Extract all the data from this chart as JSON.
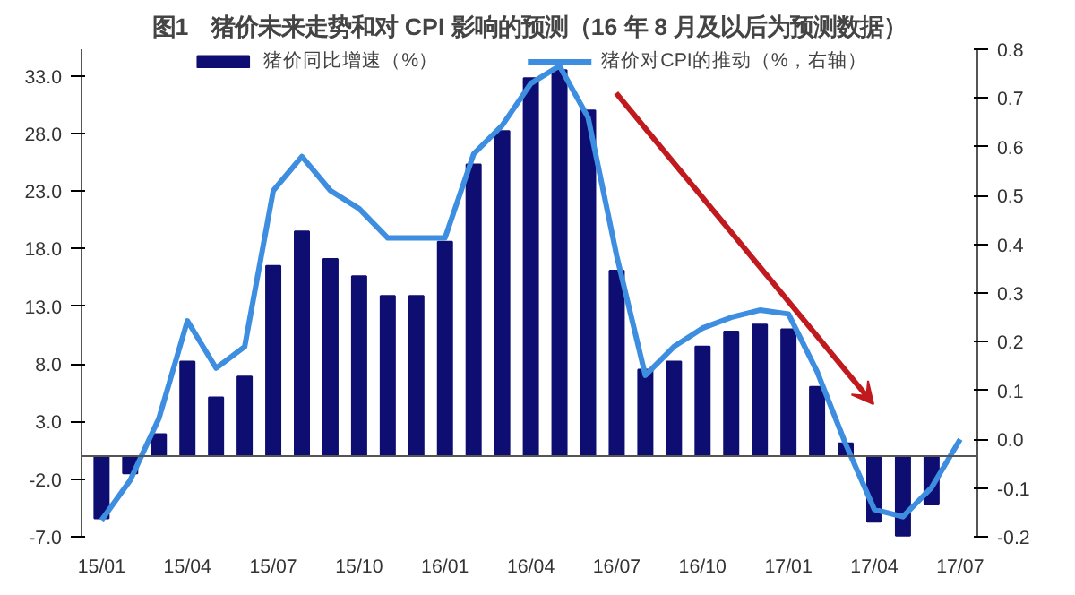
{
  "chart_data": {
    "type": "bar",
    "title": "图1　猪价未来走势和对 CPI 影响的预测（16 年 8 月及以后为预测数据）",
    "categories": [
      "15/01",
      null,
      null,
      "15/04",
      null,
      null,
      "15/07",
      null,
      null,
      "15/10",
      null,
      null,
      "16/01",
      null,
      null,
      "16/04",
      null,
      null,
      "16/07",
      null,
      null,
      "16/10",
      null,
      null,
      "17/01",
      null,
      null,
      "17/04",
      null,
      null,
      "17/07"
    ],
    "series": [
      {
        "name": "猪价同比增速（%）",
        "color": "#0d0d72",
        "values": [
          -5.4,
          -1.5,
          1.9,
          8.2,
          5.1,
          6.9,
          16.5,
          19.5,
          17.1,
          15.6,
          13.9,
          13.9,
          18.6,
          25.3,
          28.2,
          32.8,
          33.5,
          30.0,
          16.1,
          7.5,
          8.2,
          9.5,
          10.8,
          11.4,
          11.0,
          6.0,
          1.1,
          -5.7,
          -6.9,
          -4.2,
          null
        ]
      },
      {
        "name": "猪价对CPI的推动（%，右轴）",
        "type": "line",
        "axis": "y2",
        "color": "#3d8ee0",
        "values": [
          -0.166,
          -0.084,
          0.042,
          0.243,
          0.146,
          0.19,
          0.51,
          0.58,
          0.51,
          0.473,
          0.413,
          0.413,
          0.413,
          0.585,
          0.644,
          0.73,
          0.766,
          0.66,
          0.376,
          0.131,
          0.19,
          0.228,
          0.25,
          0.265,
          0.257,
          0.139,
          -0.01,
          -0.144,
          -0.159,
          -0.099,
          0.0
        ]
      }
    ],
    "ylim": [
      -7,
      35.3
    ],
    "yticks": [
      {
        "value": -7,
        "label": "-7.0"
      },
      {
        "value": -2,
        "label": "-2.0"
      },
      {
        "value": 3,
        "label": "3.0"
      },
      {
        "value": 8,
        "label": "8.0"
      },
      {
        "value": 13,
        "label": "13.0"
      },
      {
        "value": 18,
        "label": "18.0"
      },
      {
        "value": 23,
        "label": "23.0"
      },
      {
        "value": 28,
        "label": "28.0"
      },
      {
        "value": 33,
        "label": "33.0"
      }
    ],
    "y2lim": [
      -0.2,
      0.8
    ],
    "y2ticks": [
      -0.2,
      -0.1,
      {
        "value": 0,
        "label": "0.0"
      },
      0.1,
      0.2,
      0.3,
      0.4,
      0.5,
      0.6,
      0.7,
      0.8
    ],
    "legend": "top",
    "grid": false,
    "marker": "none",
    "line_style": "solid"
  }
}
